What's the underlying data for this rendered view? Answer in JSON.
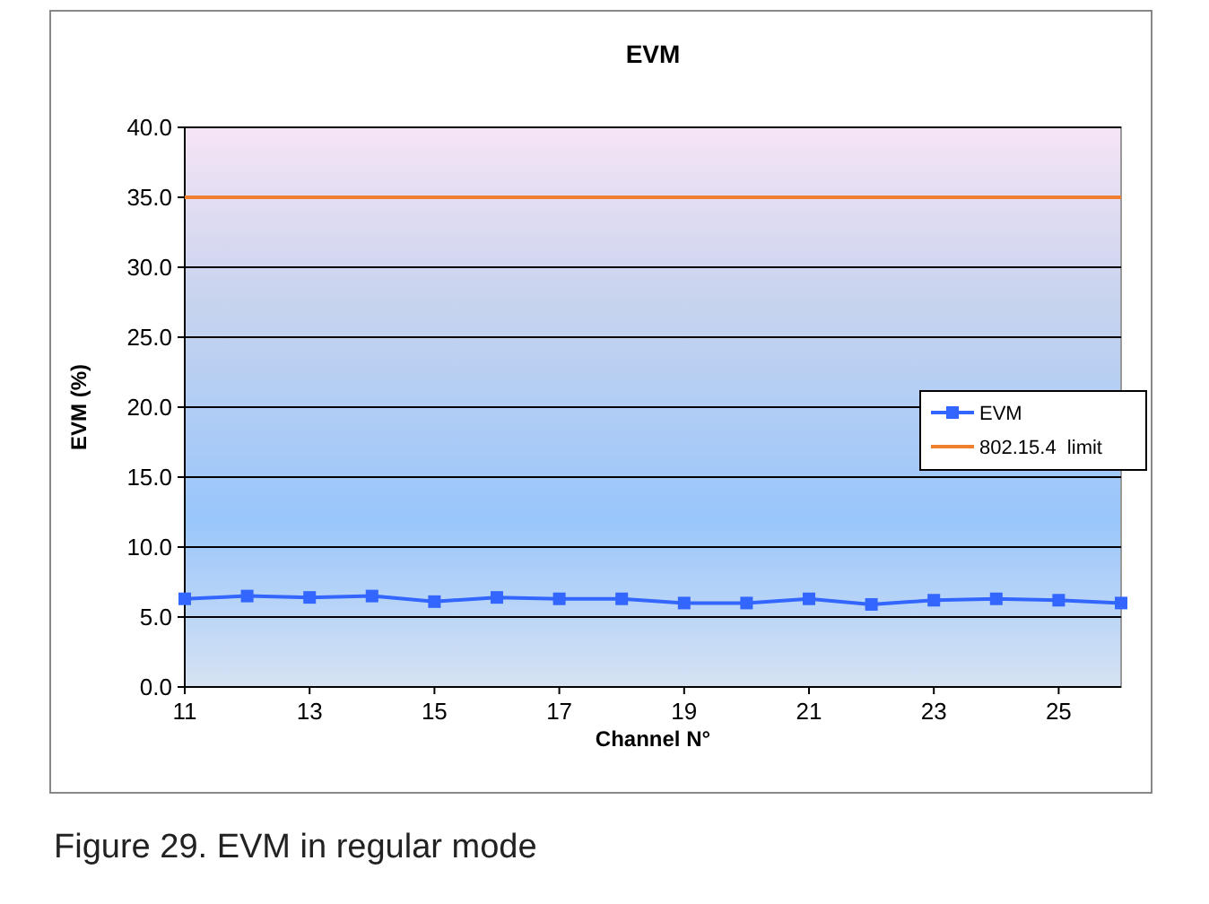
{
  "chart_data": {
    "type": "line",
    "title": "EVM",
    "xlabel": "Channel N°",
    "ylabel": "EVM (%)",
    "x": [
      11,
      12,
      13,
      14,
      15,
      16,
      17,
      18,
      19,
      20,
      21,
      22,
      23,
      24,
      25,
      26
    ],
    "series": [
      {
        "name": "EVM",
        "color": "#3366ff",
        "marker": "square",
        "values": [
          6.3,
          6.5,
          6.4,
          6.5,
          6.1,
          6.4,
          6.3,
          6.3,
          6.0,
          6.0,
          6.3,
          5.9,
          6.2,
          6.3,
          6.2,
          6.0
        ]
      },
      {
        "name": "802.15.4  limit",
        "color": "#f07f2e",
        "marker": "none",
        "values": [
          35,
          35,
          35,
          35,
          35,
          35,
          35,
          35,
          35,
          35,
          35,
          35,
          35,
          35,
          35,
          35
        ]
      }
    ],
    "xlim": [
      11,
      26
    ],
    "xticks": [
      11,
      13,
      15,
      17,
      19,
      21,
      23,
      25
    ],
    "ylim": [
      0,
      40
    ],
    "yticks": [
      {
        "value": 0,
        "label": "0.0"
      },
      {
        "value": 5,
        "label": "5.0"
      },
      {
        "value": 10,
        "label": "10.0"
      },
      {
        "value": 15,
        "label": "15.0"
      },
      {
        "value": 20,
        "label": "20.0"
      },
      {
        "value": 25,
        "label": "25.0"
      },
      {
        "value": 30,
        "label": "30.0"
      },
      {
        "value": 35,
        "label": "35.0"
      },
      {
        "value": 40,
        "label": "40.0"
      }
    ],
    "grid": "y",
    "legend": "right",
    "line_style": "solid",
    "annotations": [
      "Figure 29.  EVM in regular mode"
    ]
  }
}
